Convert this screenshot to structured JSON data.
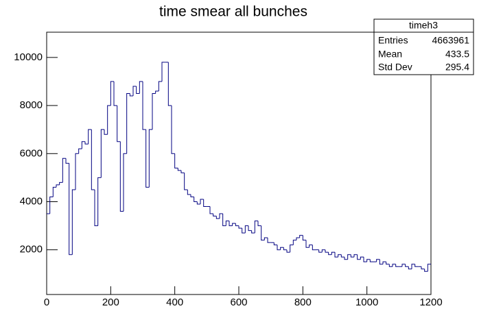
{
  "chart_data": {
    "type": "histogram",
    "title": "time smear all bunches",
    "bins": [
      0,
      10,
      20,
      30,
      40,
      50,
      60,
      70,
      80,
      90,
      100,
      110,
      120,
      130,
      140,
      150,
      160,
      170,
      180,
      190,
      200,
      210,
      220,
      230,
      240,
      250,
      260,
      270,
      280,
      290,
      300,
      310,
      320,
      330,
      340,
      350,
      360,
      370,
      380,
      390,
      400,
      410,
      420,
      430,
      440,
      450,
      460,
      470,
      480,
      490,
      500,
      510,
      520,
      530,
      540,
      550,
      560,
      570,
      580,
      590,
      600,
      610,
      620,
      630,
      640,
      650,
      660,
      670,
      680,
      690,
      700,
      710,
      720,
      730,
      740,
      750,
      760,
      770,
      780,
      790,
      800,
      810,
      820,
      830,
      840,
      850,
      860,
      870,
      880,
      890,
      900,
      910,
      920,
      930,
      940,
      950,
      960,
      970,
      980,
      990,
      1000,
      1010,
      1020,
      1030,
      1040,
      1050,
      1060,
      1070,
      1080,
      1090,
      1100,
      1110,
      1120,
      1130,
      1140,
      1150,
      1160,
      1170,
      1180,
      1190,
      1200
    ],
    "values": [
      3500,
      4200,
      4600,
      4700,
      4800,
      5800,
      5600,
      1800,
      4500,
      6000,
      6200,
      6500,
      6400,
      7000,
      4500,
      3000,
      5000,
      7000,
      6800,
      8000,
      9000,
      8000,
      6500,
      3600,
      6000,
      8500,
      8400,
      8800,
      8500,
      9000,
      7000,
      4600,
      7000,
      8500,
      8600,
      9000,
      9800,
      9800,
      8000,
      6000,
      5400,
      5300,
      5200,
      4500,
      4300,
      4200,
      4000,
      3900,
      4100,
      3800,
      3800,
      3500,
      3400,
      3300,
      3500,
      3000,
      3200,
      3000,
      3100,
      3000,
      2900,
      2700,
      3000,
      2800,
      2700,
      3200,
      3000,
      2400,
      2500,
      2300,
      2300,
      2200,
      2000,
      2100,
      2000,
      1900,
      2200,
      2400,
      2500,
      2600,
      2400,
      2100,
      2200,
      2000,
      2000,
      1900,
      2000,
      1900,
      1800,
      1900,
      1700,
      1800,
      1700,
      1600,
      1800,
      1700,
      1800,
      1600,
      1700,
      1500,
      1600,
      1500,
      1500,
      1600,
      1400,
      1500,
      1400,
      1300,
      1400,
      1300,
      1300,
      1400,
      1300,
      1200,
      1400,
      1300,
      1300,
      1200,
      1100,
      1400
    ],
    "color": "#000080",
    "xlim": [
      0,
      1200
    ],
    "xticks": [
      0,
      200,
      400,
      600,
      800,
      1000,
      1200
    ],
    "ylim": [
      140,
      11050
    ],
    "yticks": [
      2000,
      4000,
      6000,
      8000,
      10000
    ],
    "stats_box": {
      "name": "timeh3",
      "rows": [
        {
          "label": "Entries",
          "value": 4663961
        },
        {
          "label": "Mean",
          "value": 433.5
        },
        {
          "label": "Std Dev",
          "value": 295.4
        }
      ]
    }
  }
}
